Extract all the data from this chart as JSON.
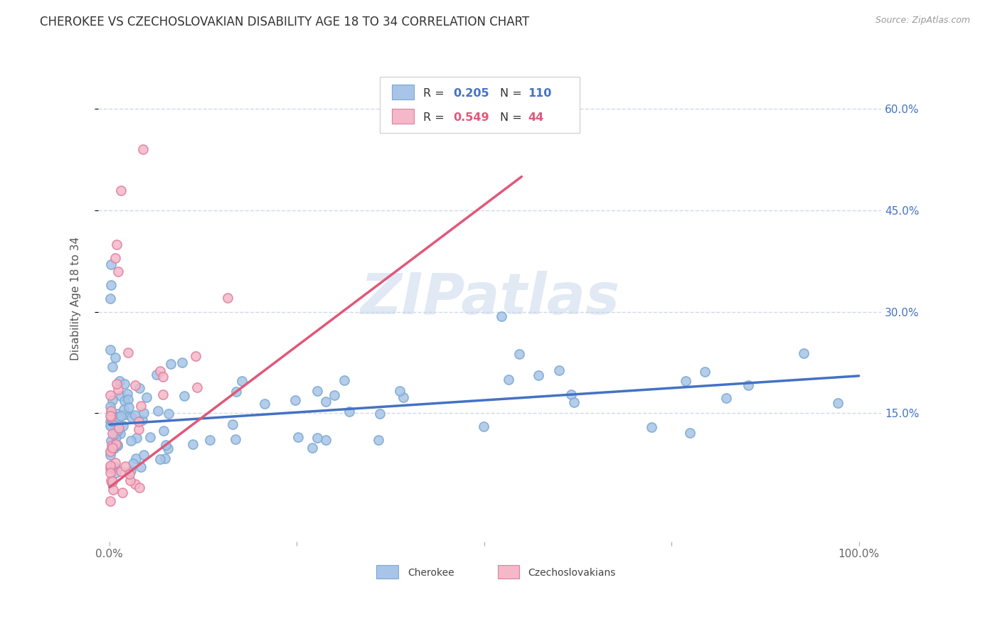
{
  "title": "CHEROKEE VS CZECHOSLOVAKIAN DISABILITY AGE 18 TO 34 CORRELATION CHART",
  "source": "Source: ZipAtlas.com",
  "ylabel_label": "Disability Age 18 to 34",
  "ytick_labels": [
    "15.0%",
    "30.0%",
    "45.0%",
    "60.0%"
  ],
  "ytick_values": [
    0.15,
    0.3,
    0.45,
    0.6
  ],
  "xlim": [
    -0.015,
    1.03
  ],
  "ylim": [
    -0.04,
    0.68
  ],
  "cherokee_color": "#a8c4e8",
  "cherokee_edge_color": "#7aaad0",
  "czechoslovakian_color": "#f4b8c8",
  "czechoslovakian_edge_color": "#e080a0",
  "cherokee_line_color": "#4472c4",
  "czechoslovakian_line_color": "#e05878",
  "cherokee_R": "0.205",
  "cherokee_N": "110",
  "czechoslovakian_R": "0.549",
  "czechoslovakian_N": "44",
  "watermark": "ZIPatlas",
  "background_color": "#ffffff",
  "grid_color": "#d0d8e8",
  "grid_linestyle": "--",
  "title_fontsize": 12,
  "axis_fontsize": 11,
  "tick_fontsize": 11,
  "source_fontsize": 9,
  "cherokee_line_start_x": 0.0,
  "cherokee_line_start_y": 0.133,
  "cherokee_line_end_x": 1.0,
  "cherokee_line_end_y": 0.205,
  "czech_line_start_x": 0.0,
  "czech_line_start_y": 0.04,
  "czech_line_end_x": 0.55,
  "czech_line_end_y": 0.5
}
